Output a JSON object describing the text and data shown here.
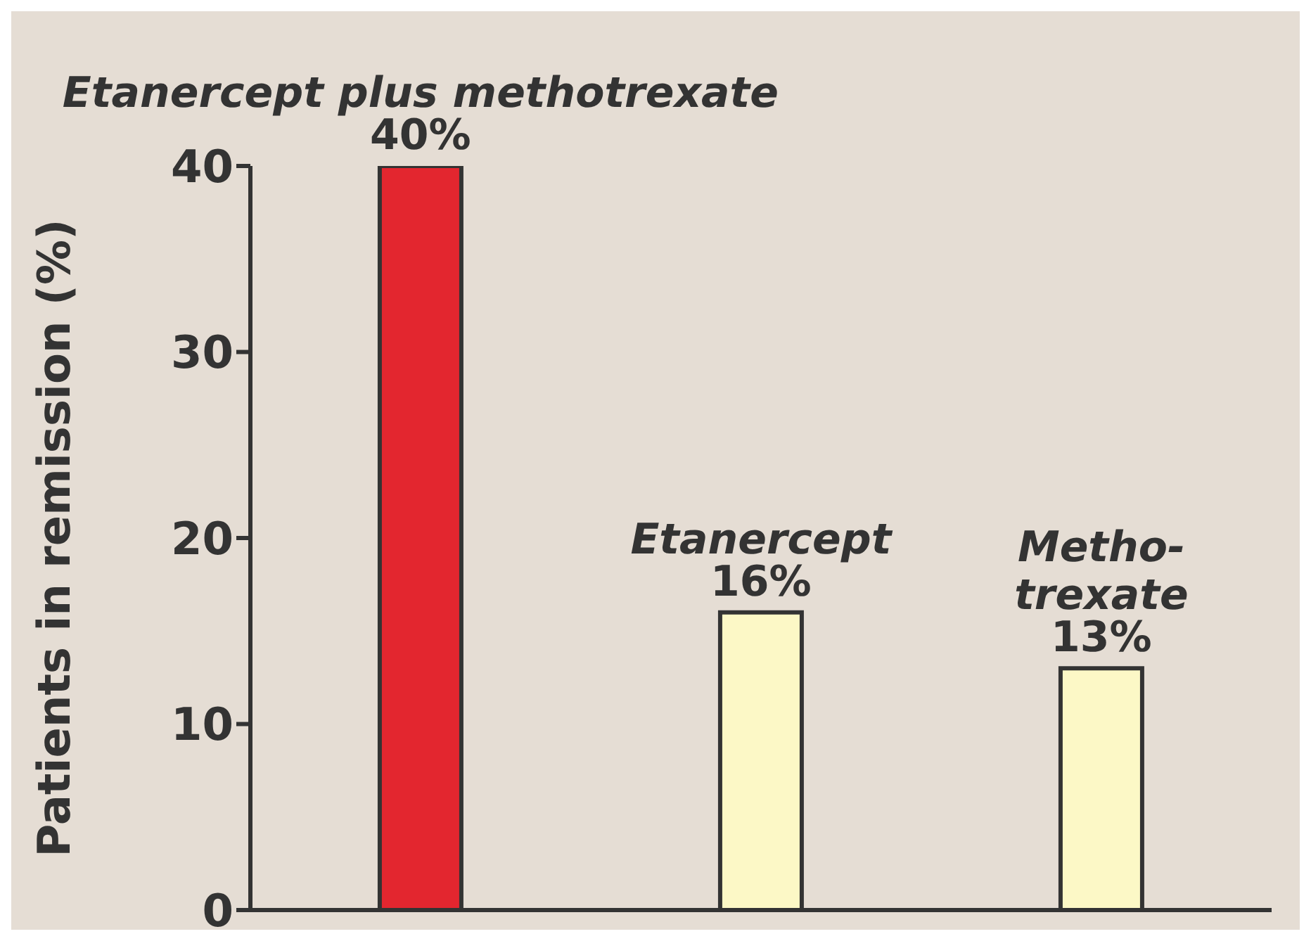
{
  "chart_data": {
    "type": "bar",
    "categories": [
      "Etanercept plus methotrexate",
      "Etanercept",
      "Metho-\ntrexate"
    ],
    "values": [
      40,
      16,
      13
    ],
    "colors": [
      "#e3262f",
      "#fcf8c6",
      "#fcf8c6"
    ],
    "value_labels": [
      "40%",
      "16%",
      "13%"
    ],
    "ylabel": "Patients in remission (%)",
    "ylim": [
      0,
      40
    ],
    "yticks": [
      0,
      10,
      20,
      30,
      40
    ],
    "grid": false,
    "legend": false
  }
}
